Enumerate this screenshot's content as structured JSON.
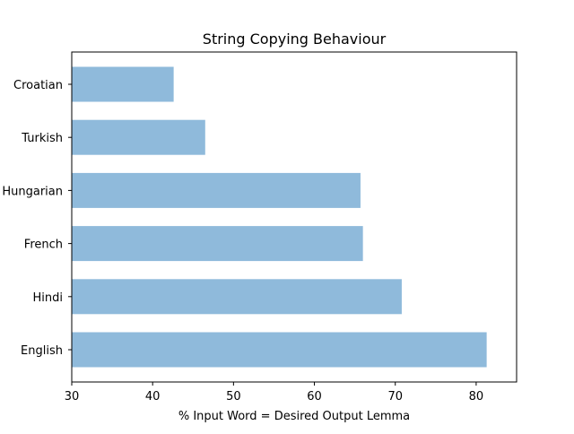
{
  "chart_data": {
    "type": "bar",
    "orientation": "horizontal",
    "title": "String Copying Behaviour",
    "xlabel": "% Input Word = Desired Output Lemma",
    "ylabel": "",
    "categories": [
      "Croatian",
      "Turkish",
      "Hungarian",
      "French",
      "Hindi",
      "English"
    ],
    "values": [
      42.6,
      46.5,
      65.7,
      66.0,
      70.8,
      81.3
    ],
    "xlim": [
      30,
      85
    ],
    "xticks": [
      30,
      40,
      50,
      60,
      70,
      80
    ],
    "grid": false,
    "bar_color": "#8fbadb"
  }
}
